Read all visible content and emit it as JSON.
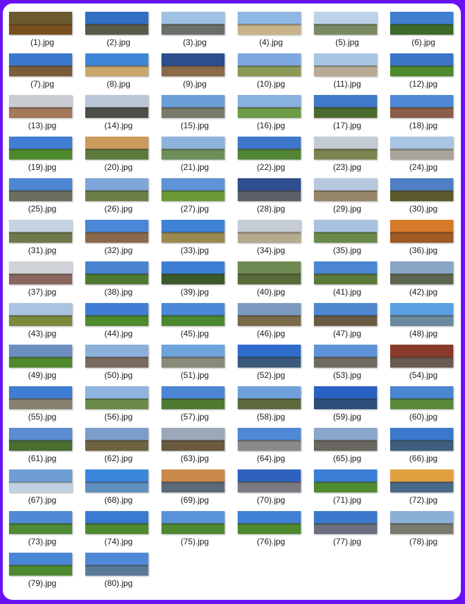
{
  "files": [
    {
      "name": "(1).jpg",
      "sky": "#6b5a2e",
      "ground": "#7a4f1f"
    },
    {
      "name": "(2).jpg",
      "sky": "#2f6fc4",
      "ground": "#5a5a48"
    },
    {
      "name": "(3).jpg",
      "sky": "#9fc1e3",
      "ground": "#6a6f68"
    },
    {
      "name": "(4).jpg",
      "sky": "#8fb7e6",
      "ground": "#c8b48a"
    },
    {
      "name": "(5).jpg",
      "sky": "#bdd3ea",
      "ground": "#7a8a62"
    },
    {
      "name": "(6).jpg",
      "sky": "#3f7fd0",
      "ground": "#3d6a2b"
    },
    {
      "name": "(7).jpg",
      "sky": "#3a78cc",
      "ground": "#7b5d3a"
    },
    {
      "name": "(8).jpg",
      "sky": "#3f85d8",
      "ground": "#c9a86e"
    },
    {
      "name": "(9).jpg",
      "sky": "#2c4e8d",
      "ground": "#8a6a48"
    },
    {
      "name": "(10).jpg",
      "sky": "#7ea9e0",
      "ground": "#8b9a55"
    },
    {
      "name": "(11).jpg",
      "sky": "#a9c6e7",
      "ground": "#b8ad94"
    },
    {
      "name": "(12).jpg",
      "sky": "#3c74c8",
      "ground": "#4f8a2c"
    },
    {
      "name": "(13).jpg",
      "sky": "#c9ccd1",
      "ground": "#a5785a"
    },
    {
      "name": "(14).jpg",
      "sky": "#b9c6d6",
      "ground": "#4b4f48"
    },
    {
      "name": "(15).jpg",
      "sky": "#6a9fd8",
      "ground": "#7a7a6a"
    },
    {
      "name": "(16).jpg",
      "sky": "#88b0e0",
      "ground": "#6e9b45"
    },
    {
      "name": "(17).jpg",
      "sky": "#3f79c8",
      "ground": "#4a6b2e"
    },
    {
      "name": "(18).jpg",
      "sky": "#4f88d4",
      "ground": "#8a5e48"
    },
    {
      "name": "(19).jpg",
      "sky": "#3f7ed2",
      "ground": "#4d8a2d"
    },
    {
      "name": "(20).jpg",
      "sky": "#c99a5a",
      "ground": "#5c7a3a"
    },
    {
      "name": "(21).jpg",
      "sky": "#8fb4dc",
      "ground": "#6e8e5a"
    },
    {
      "name": "(22).jpg",
      "sky": "#3e78cc",
      "ground": "#4f8534"
    },
    {
      "name": "(23).jpg",
      "sky": "#c4cbd2",
      "ground": "#7b8552"
    },
    {
      "name": "(24).jpg",
      "sky": "#a9c5e4",
      "ground": "#a8a49a"
    },
    {
      "name": "(25).jpg",
      "sky": "#4d86d2",
      "ground": "#6d6d5d"
    },
    {
      "name": "(26).jpg",
      "sky": "#7fa6d8",
      "ground": "#6b8046"
    },
    {
      "name": "(27).jpg",
      "sky": "#5f93d6",
      "ground": "#6b9a34"
    },
    {
      "name": "(28).jpg",
      "sky": "#2f5090",
      "ground": "#5a5f6a"
    },
    {
      "name": "(29).jpg",
      "sky": "#b7c8de",
      "ground": "#96866a"
    },
    {
      "name": "(30).jpg",
      "sky": "#4f7fc4",
      "ground": "#5e5a2e"
    },
    {
      "name": "(31).jpg",
      "sky": "#c6d3e2",
      "ground": "#6f7a4a"
    },
    {
      "name": "(32).jpg",
      "sky": "#4a87d6",
      "ground": "#8a6a4a"
    },
    {
      "name": "(33).jpg",
      "sky": "#3d82d6",
      "ground": "#9a8a4f"
    },
    {
      "name": "(34).jpg",
      "sky": "#c5ccd5",
      "ground": "#b5a98e"
    },
    {
      "name": "(35).jpg",
      "sky": "#a8c2df",
      "ground": "#6b8a4a"
    },
    {
      "name": "(36).jpg",
      "sky": "#d67a2a",
      "ground": "#a05a22"
    },
    {
      "name": "(37).jpg",
      "sky": "#d0d3d8",
      "ground": "#8a6660"
    },
    {
      "name": "(38).jpg",
      "sky": "#4a83d0",
      "ground": "#4f7a32"
    },
    {
      "name": "(39).jpg",
      "sky": "#3d7ed4",
      "ground": "#3c5a2c"
    },
    {
      "name": "(40).jpg",
      "sky": "#6f8a52",
      "ground": "#5a6a38"
    },
    {
      "name": "(41).jpg",
      "sky": "#4c86d2",
      "ground": "#5c7a3a"
    },
    {
      "name": "(42).jpg",
      "sky": "#8aa6c6",
      "ground": "#5c6650"
    },
    {
      "name": "(43).jpg",
      "sky": "#a9c4e2",
      "ground": "#7c8a3e"
    },
    {
      "name": "(44).jpg",
      "sky": "#3f7ed4",
      "ground": "#4e8a2e"
    },
    {
      "name": "(45).jpg",
      "sky": "#4a88d8",
      "ground": "#4a8a2f"
    },
    {
      "name": "(46).jpg",
      "sky": "#7c9ac0",
      "ground": "#7a6a48"
    },
    {
      "name": "(47).jpg",
      "sky": "#4f87d0",
      "ground": "#6a5c44"
    },
    {
      "name": "(48).jpg",
      "sky": "#5aa0e0",
      "ground": "#6a8aa0"
    },
    {
      "name": "(49).jpg",
      "sky": "#6b8fc0",
      "ground": "#4f8a2f"
    },
    {
      "name": "(50).jpg",
      "sky": "#8cb0da",
      "ground": "#7a6a60"
    },
    {
      "name": "(51).jpg",
      "sky": "#6fa4dc",
      "ground": "#8a8a7a"
    },
    {
      "name": "(52).jpg",
      "sky": "#2f6ccc",
      "ground": "#3a5a7a"
    },
    {
      "name": "(53).jpg",
      "sky": "#5f93d8",
      "ground": "#6f6a62"
    },
    {
      "name": "(54).jpg",
      "sky": "#8a3a2a",
      "ground": "#6a5a52"
    },
    {
      "name": "(55).jpg",
      "sky": "#3f7ed2",
      "ground": "#8a8070"
    },
    {
      "name": "(56).jpg",
      "sky": "#8fb4e0",
      "ground": "#6b8a4a"
    },
    {
      "name": "(57).jpg",
      "sky": "#4a86d4",
      "ground": "#4e7a32"
    },
    {
      "name": "(58).jpg",
      "sky": "#6fa0dc",
      "ground": "#5e6a3e"
    },
    {
      "name": "(59).jpg",
      "sky": "#2a62c4",
      "ground": "#2c4f7a"
    },
    {
      "name": "(60).jpg",
      "sky": "#4a86d2",
      "ground": "#5a8a3a"
    },
    {
      "name": "(61).jpg",
      "sky": "#5a8ed0",
      "ground": "#4a6e30"
    },
    {
      "name": "(62).jpg",
      "sky": "#7a9ec8",
      "ground": "#6e6240"
    },
    {
      "name": "(63).jpg",
      "sky": "#9aa8b8",
      "ground": "#6a5a3e"
    },
    {
      "name": "(64).jpg",
      "sky": "#4f88d6",
      "ground": "#8a8a8a"
    },
    {
      "name": "(65).jpg",
      "sky": "#8aa8cc",
      "ground": "#6a6660"
    },
    {
      "name": "(66).jpg",
      "sky": "#3a78cc",
      "ground": "#3f5e80"
    },
    {
      "name": "(67).jpg",
      "sky": "#6f9ed6",
      "ground": "#c0d0e0"
    },
    {
      "name": "(68).jpg",
      "sky": "#3a86dc",
      "ground": "#5f90c0"
    },
    {
      "name": "(69).jpg",
      "sky": "#c98a4a",
      "ground": "#5a6a7a"
    },
    {
      "name": "(70).jpg",
      "sky": "#2f62c0",
      "ground": "#7a7a80"
    },
    {
      "name": "(71).jpg",
      "sky": "#3a7ed6",
      "ground": "#4e8a30"
    },
    {
      "name": "(72).jpg",
      "sky": "#e0a040",
      "ground": "#4a6a8a"
    },
    {
      "name": "(73).jpg",
      "sky": "#4e8ad6",
      "ground": "#4f8a34"
    },
    {
      "name": "(74).jpg",
      "sky": "#3a7ad0",
      "ground": "#4e8a2e"
    },
    {
      "name": "(75).jpg",
      "sky": "#5a92d8",
      "ground": "#4e8a32"
    },
    {
      "name": "(76).jpg",
      "sky": "#3f80d4",
      "ground": "#4f8a30"
    },
    {
      "name": "(77).jpg",
      "sky": "#3a78cc",
      "ground": "#6a7080"
    },
    {
      "name": "(78).jpg",
      "sky": "#8ab0d8",
      "ground": "#7a7a70"
    },
    {
      "name": "(79).jpg",
      "sky": "#4a86d6",
      "ground": "#4e8a30"
    },
    {
      "name": "(80).jpg",
      "sky": "#4f8ad8",
      "ground": "#5a7a9a"
    }
  ]
}
